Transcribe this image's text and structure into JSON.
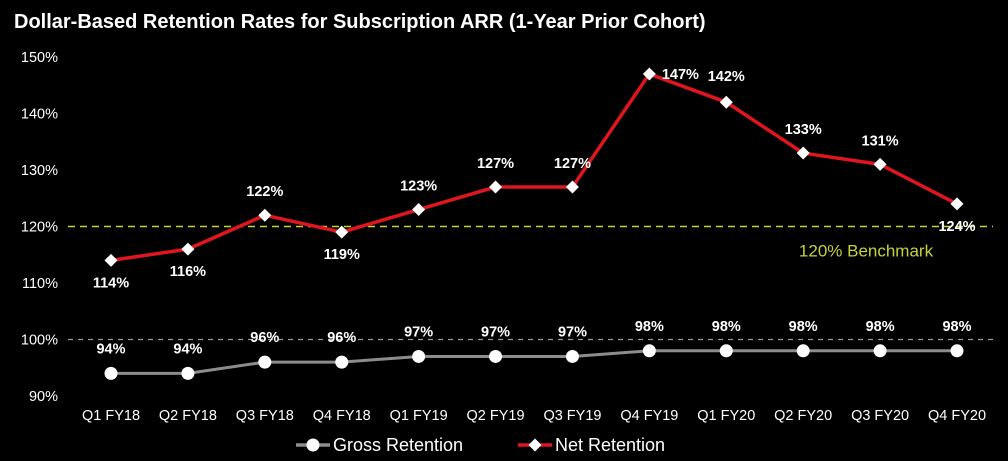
{
  "colors": {
    "background": "#000000",
    "text": "#ffffff",
    "gross": "#8c8c8c",
    "net": "#e0161e",
    "benchmark": "#c8d23c",
    "reference": "#9a9a9a"
  },
  "chart_data": {
    "type": "line",
    "title": "Dollar-Based Retention Rates for Subscription ARR (1-Year Prior Cohort)",
    "xlabel": "",
    "ylabel": "",
    "categories": [
      "Q1 FY18",
      "Q2 FY18",
      "Q3 FY18",
      "Q4 FY18",
      "Q1 FY19",
      "Q2 FY19",
      "Q3 FY19",
      "Q4 FY19",
      "Q1 FY20",
      "Q2 FY20",
      "Q3 FY20",
      "Q4 FY20"
    ],
    "ylim": [
      90,
      150
    ],
    "yticks": [
      90,
      100,
      110,
      120,
      130,
      140,
      150
    ],
    "ytick_labels": [
      "90%",
      "100%",
      "110%",
      "120%",
      "130%",
      "140%",
      "150%"
    ],
    "series": [
      {
        "name": "Gross Retention",
        "marker": "circle",
        "values": [
          94,
          94,
          96,
          96,
          97,
          97,
          97,
          98,
          98,
          98,
          98,
          98
        ],
        "labels": [
          "94%",
          "94%",
          "96%",
          "96%",
          "97%",
          "97%",
          "97%",
          "98%",
          "98%",
          "98%",
          "98%",
          "98%"
        ]
      },
      {
        "name": "Net Retention",
        "marker": "diamond",
        "values": [
          114,
          116,
          122,
          119,
          123,
          127,
          127,
          147,
          142,
          133,
          131,
          124
        ],
        "labels": [
          "114%",
          "116%",
          "122%",
          "119%",
          "123%",
          "127%",
          "127%",
          "147%",
          "142%",
          "133%",
          "131%",
          "124%"
        ]
      }
    ],
    "reference_lines": [
      {
        "value": 120,
        "label": "120% Benchmark",
        "style": "dashed"
      },
      {
        "value": 100,
        "label": "",
        "style": "dashed"
      }
    ],
    "legend": {
      "position": "bottom-center",
      "entries": [
        "Gross Retention",
        "Net Retention"
      ]
    },
    "grid": false
  }
}
